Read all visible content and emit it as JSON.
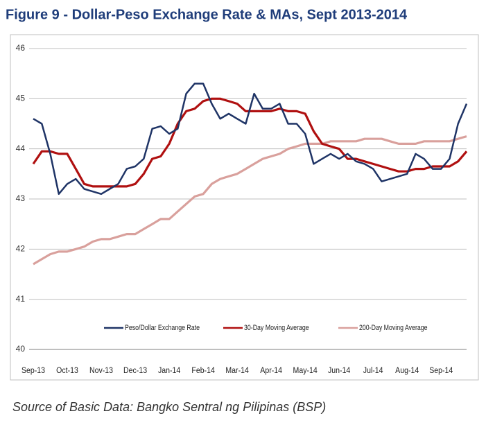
{
  "chart_data": {
    "type": "line",
    "title": "Figure 9 - Dollar-Peso Exchange Rate & MAs, Sept 2013-2014",
    "source": "Source of Basic Data: Bangko Sentral ng Pilipinas (BSP)",
    "categories": [
      "Sep-13",
      null,
      null,
      null,
      "Oct-13",
      null,
      null,
      null,
      "Nov-13",
      null,
      null,
      null,
      "Dec-13",
      null,
      null,
      null,
      "Jan-14",
      null,
      null,
      null,
      "Feb-14",
      null,
      null,
      null,
      "Mar-14",
      null,
      null,
      null,
      "Apr-14",
      null,
      null,
      null,
      "May-14",
      null,
      null,
      null,
      "Jun-14",
      null,
      null,
      null,
      "Jul-14",
      null,
      null,
      null,
      "Aug-14",
      null,
      null,
      null,
      "Sep-14",
      null,
      null,
      null
    ],
    "series": [
      {
        "name": "Peso/Dollar Exchange Rate",
        "color": "#1f3466",
        "values": [
          44.6,
          44.5,
          43.9,
          43.1,
          43.3,
          43.4,
          43.2,
          43.15,
          43.1,
          43.2,
          43.3,
          43.6,
          43.65,
          43.8,
          44.4,
          44.45,
          44.3,
          44.4,
          45.1,
          45.3,
          45.3,
          44.9,
          44.6,
          44.7,
          44.6,
          44.5,
          45.1,
          44.8,
          44.8,
          44.9,
          44.5,
          44.5,
          44.3,
          43.7,
          43.8,
          43.9,
          43.8,
          43.9,
          43.75,
          43.7,
          43.6,
          43.35,
          43.4,
          43.45,
          43.5,
          43.9,
          43.8,
          43.6,
          43.6,
          43.8,
          44.5,
          44.9
        ]
      },
      {
        "name": "30-Day Moving Average",
        "color": "#b01010",
        "values": [
          43.7,
          43.95,
          43.95,
          43.9,
          43.9,
          43.6,
          43.3,
          43.25,
          43.25,
          43.25,
          43.25,
          43.25,
          43.3,
          43.5,
          43.8,
          43.85,
          44.1,
          44.5,
          44.75,
          44.8,
          44.95,
          45.0,
          45.0,
          44.95,
          44.9,
          44.75,
          44.75,
          44.75,
          44.75,
          44.8,
          44.75,
          44.75,
          44.7,
          44.35,
          44.1,
          44.05,
          44.0,
          43.8,
          43.8,
          43.75,
          43.7,
          43.65,
          43.6,
          43.55,
          43.55,
          43.6,
          43.6,
          43.65,
          43.65,
          43.65,
          43.75,
          43.95
        ]
      },
      {
        "name": "200-Day Moving Average",
        "color": "#d9a09c",
        "values": [
          41.7,
          41.8,
          41.9,
          41.95,
          41.95,
          42.0,
          42.05,
          42.15,
          42.2,
          42.2,
          42.25,
          42.3,
          42.3,
          42.4,
          42.5,
          42.6,
          42.6,
          42.75,
          42.9,
          43.05,
          43.1,
          43.3,
          43.4,
          43.45,
          43.5,
          43.6,
          43.7,
          43.8,
          43.85,
          43.9,
          44.0,
          44.05,
          44.1,
          44.1,
          44.1,
          44.15,
          44.15,
          44.15,
          44.15,
          44.2,
          44.2,
          44.2,
          44.15,
          44.1,
          44.1,
          44.1,
          44.15,
          44.15,
          44.15,
          44.15,
          44.2,
          44.25
        ]
      }
    ],
    "ylim": [
      40,
      46
    ],
    "yticks": [
      40,
      41,
      42,
      43,
      44,
      45,
      46
    ],
    "grid": true,
    "legend": "bottom"
  }
}
